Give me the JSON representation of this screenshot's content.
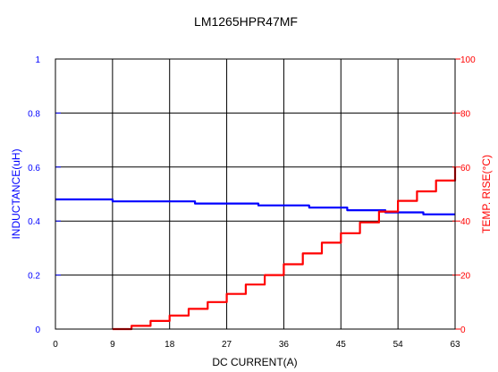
{
  "chart_data": {
    "type": "line",
    "title": "LM1265HPR47MF",
    "xlabel": "DC CURRENT(A)",
    "ylabel_left": "INDUCTANCE(uH)",
    "ylabel_right": "TEMP. RISE(°C)",
    "x_ticks": [
      "0",
      "9",
      "18",
      "27",
      "36",
      "45",
      "54",
      "63"
    ],
    "y_left_ticks": [
      "0",
      "0.2",
      "0.4",
      "0.6",
      "0.8",
      "1"
    ],
    "y_right_ticks": [
      "0",
      "20",
      "40",
      "60",
      "80",
      "100"
    ],
    "xlim": [
      0,
      63
    ],
    "ylim_left": [
      0,
      1
    ],
    "ylim_right": [
      0,
      100
    ],
    "grid": true,
    "colors": {
      "left_axis": "#0000ff",
      "right_axis": "#ff0000",
      "grid": "#000000"
    },
    "series": [
      {
        "axis": "left",
        "color": "#0000ff",
        "x": [
          0,
          9,
          9,
          22,
          22,
          32,
          32,
          40,
          40,
          46,
          46,
          52,
          52,
          58,
          58,
          63
        ],
        "y": [
          0.48,
          0.48,
          0.473,
          0.473,
          0.465,
          0.465,
          0.458,
          0.458,
          0.45,
          0.45,
          0.44,
          0.44,
          0.432,
          0.432,
          0.425,
          0.425
        ]
      },
      {
        "axis": "right",
        "color": "#ff0000",
        "x": [
          9,
          12,
          15,
          18,
          21,
          24,
          27,
          30,
          33,
          36,
          39,
          42,
          45,
          48,
          51,
          54,
          57,
          60,
          63
        ],
        "y": [
          0,
          1.2,
          3,
          5,
          7.5,
          10,
          13,
          16.5,
          20,
          24,
          28,
          32,
          35.5,
          39.5,
          43.5,
          47.5,
          51,
          55,
          60
        ]
      }
    ]
  }
}
